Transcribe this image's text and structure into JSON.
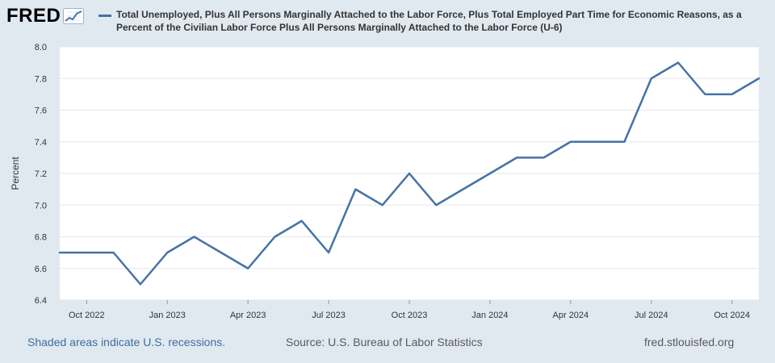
{
  "header": {
    "logo_text": "FRED",
    "title_line1": "Total Unemployed, Plus All Persons Marginally Attached to the Labor Force, Plus Total Employed Part Time for Economic Reasons, as a",
    "title_line2": "Percent of the Civilian Labor Force Plus All Persons Marginally Attached to the Labor Force (U-6)"
  },
  "footer": {
    "recession_note": "Shaded areas indicate U.S. recessions.",
    "source": "Source: U.S. Bureau of Labor Statistics",
    "site": "fred.stlouisfed.org"
  },
  "colors": {
    "series": "#4572a7",
    "plot_bg": "#ffffff",
    "page_bg": "#e1e9f0"
  },
  "chart_data": {
    "type": "line",
    "title": "Total Unemployed, Plus All Persons Marginally Attached to the Labor Force, Plus Total Employed Part Time for Economic Reasons, as a Percent of the Civilian Labor Force Plus All Persons Marginally Attached to the Labor Force (U-6)",
    "ylabel": "Percent",
    "xlabel": "",
    "ylim": [
      6.4,
      8.0
    ],
    "yticks": [
      "6.4",
      "6.6",
      "6.8",
      "7.0",
      "7.2",
      "7.4",
      "7.6",
      "7.8",
      "8.0"
    ],
    "x_range": [
      "2022-09",
      "2024-11"
    ],
    "xticks": [
      {
        "label": "Oct 2022",
        "x": "2022-10"
      },
      {
        "label": "Jan 2023",
        "x": "2023-01"
      },
      {
        "label": "Apr 2023",
        "x": "2023-04"
      },
      {
        "label": "Jul 2023",
        "x": "2023-07"
      },
      {
        "label": "Oct 2023",
        "x": "2023-10"
      },
      {
        "label": "Jan 2024",
        "x": "2024-01"
      },
      {
        "label": "Apr 2024",
        "x": "2024-04"
      },
      {
        "label": "Jul 2024",
        "x": "2024-07"
      },
      {
        "label": "Oct 2024",
        "x": "2024-10"
      }
    ],
    "grid": true,
    "legend_position": "top",
    "series": [
      {
        "name": "Total Unemployed, Plus All Persons Marginally Attached to the Labor Force, Plus Total Employed Part Time for Economic Reasons, as a Percent of the Civilian Labor Force Plus All Persons Marginally Attached to the Labor Force (U-6)",
        "x": [
          "2022-09",
          "2022-10",
          "2022-11",
          "2022-12",
          "2023-01",
          "2023-02",
          "2023-03",
          "2023-04",
          "2023-05",
          "2023-06",
          "2023-07",
          "2023-08",
          "2023-09",
          "2023-10",
          "2023-11",
          "2023-12",
          "2024-01",
          "2024-02",
          "2024-03",
          "2024-04",
          "2024-05",
          "2024-06",
          "2024-07",
          "2024-08",
          "2024-09",
          "2024-10",
          "2024-11"
        ],
        "values": [
          6.7,
          6.7,
          6.7,
          6.5,
          6.7,
          6.8,
          6.7,
          6.6,
          6.8,
          6.9,
          6.7,
          7.1,
          7.0,
          7.2,
          7.0,
          7.1,
          7.2,
          7.3,
          7.3,
          7.4,
          7.4,
          7.4,
          7.8,
          7.9,
          7.7,
          7.7,
          7.8
        ]
      }
    ]
  }
}
